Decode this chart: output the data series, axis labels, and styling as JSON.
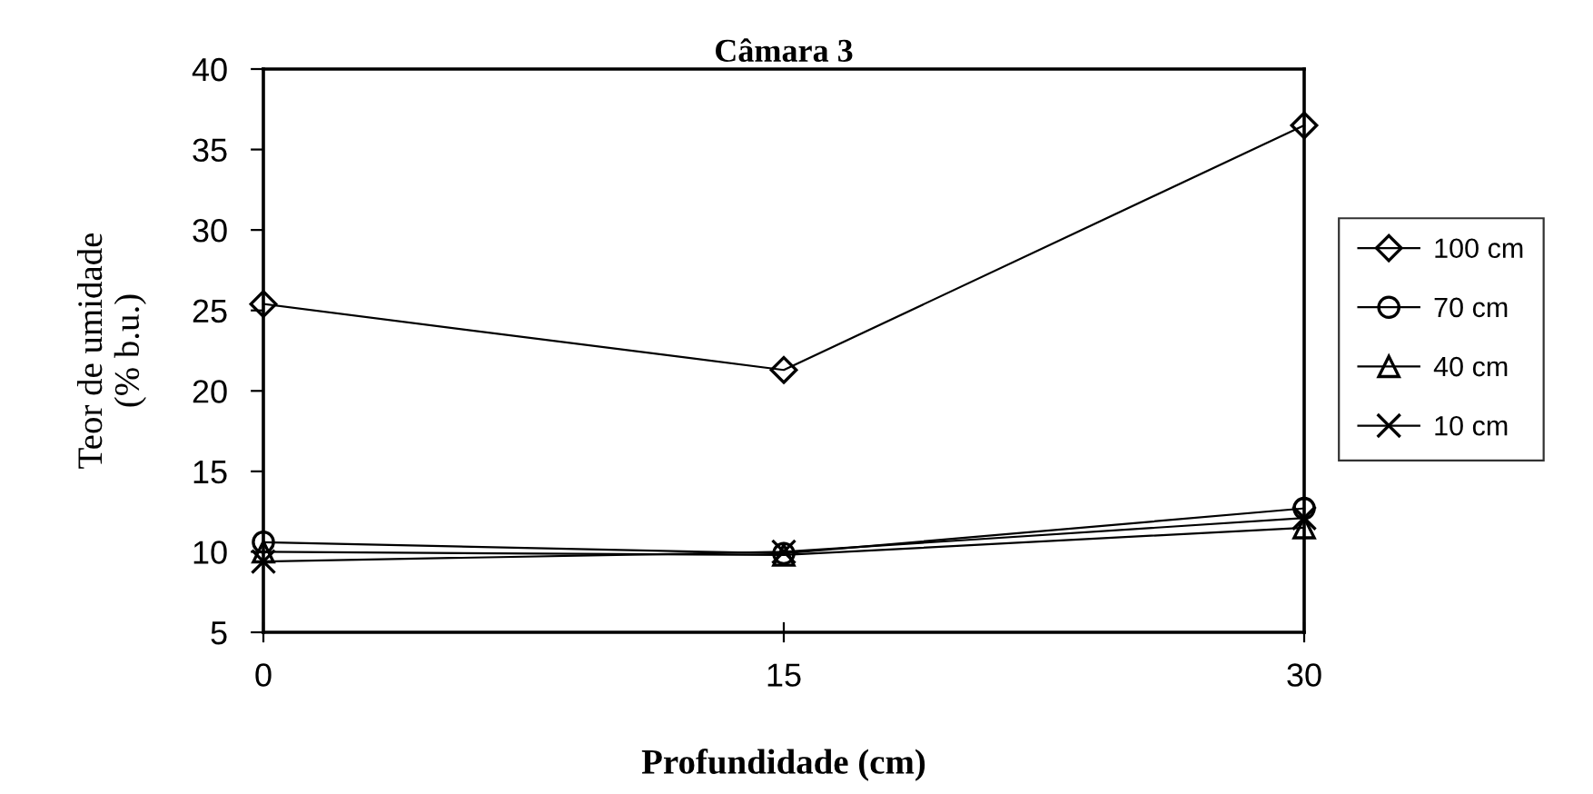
{
  "chart_data": {
    "type": "line",
    "title": "Câmara 3",
    "xlabel": "Profundidade (cm)",
    "ylabel": "Teor de umidade\n(% b.u.)",
    "x": [
      0,
      15,
      30
    ],
    "xlim": [
      0,
      30
    ],
    "xticks": [
      0,
      15,
      30
    ],
    "ylim": [
      5,
      40
    ],
    "yticks": [
      5,
      10,
      15,
      20,
      25,
      30,
      35,
      40
    ],
    "grid": false,
    "legend": "right",
    "series": [
      {
        "name": "100 cm",
        "color": "#000000",
        "marker": "diamond",
        "values": [
          25.4,
          21.3,
          36.5
        ]
      },
      {
        "name": "70 cm",
        "color": "#000000",
        "marker": "circle",
        "values": [
          10.6,
          9.9,
          12.7
        ]
      },
      {
        "name": "40 cm",
        "color": "#000000",
        "marker": "triangle",
        "values": [
          10.0,
          9.8,
          11.5
        ]
      },
      {
        "name": "10 cm",
        "color": "#000000",
        "marker": "cross",
        "values": [
          9.4,
          10.0,
          12.1
        ]
      }
    ]
  }
}
